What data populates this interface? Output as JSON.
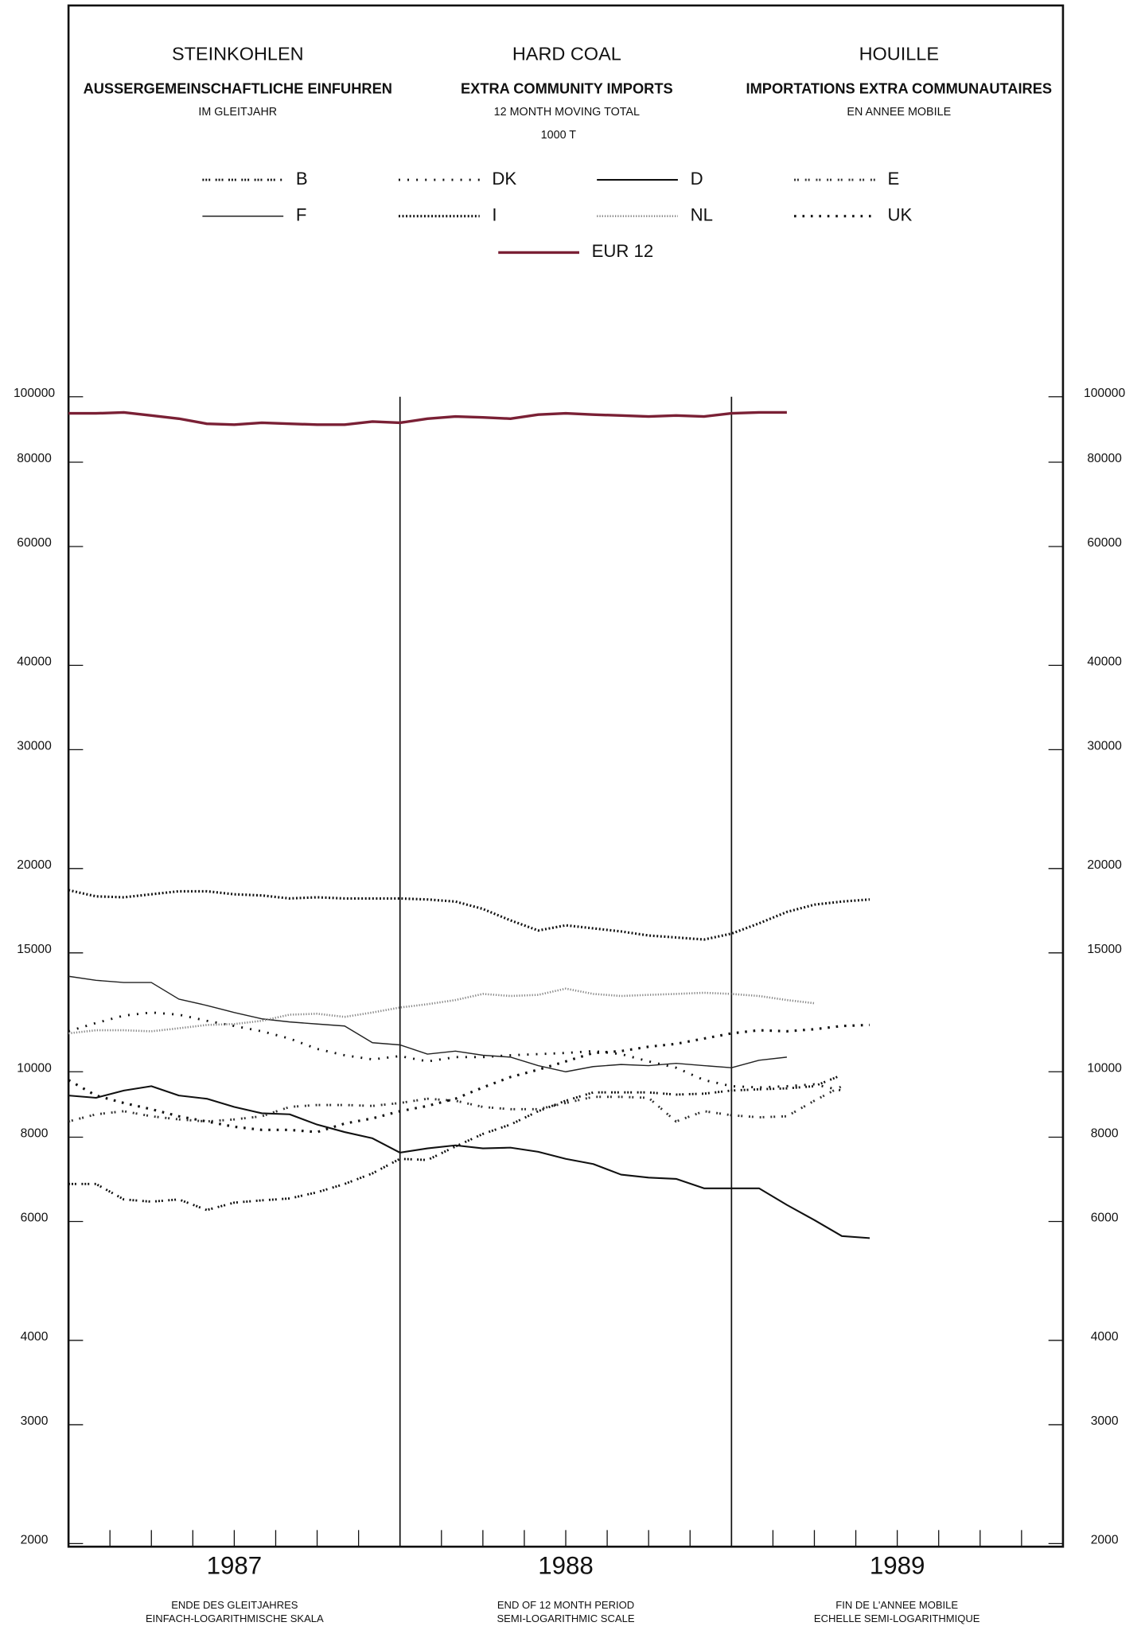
{
  "chart_data": {
    "type": "line",
    "title": [
      "STEINKOHLEN",
      "HARD COAL",
      "HOUILLE"
    ],
    "subtitle": [
      "AUSSERGEMEINSCHAFTLICHE EINFUHREN",
      "EXTRA COMMUNITY IMPORTS",
      "IMPORTATIONS EXTRA COMMUNAUTAIRES"
    ],
    "period": [
      "IM GLEITJAHR",
      "12 MONTH MOVING TOTAL",
      "EN ANNEE MOBILE"
    ],
    "unit": "1000 T",
    "notes": [
      [
        "ENDE DES GLEITJAHRES",
        "EINFACH-LOGARITHMISCHE SKALA"
      ],
      [
        "END OF 12 MONTH PERIOD",
        "SEMI-LOGARITHMIC SCALE"
      ],
      [
        "FIN DE L'ANNEE MOBILE",
        "ECHELLE SEMI-LOGARITHMIQUE"
      ]
    ],
    "log_y": true,
    "xlim": [
      1987,
      1990
    ],
    "xticks": [
      {
        "value": 1987.5,
        "label": "1987"
      },
      {
        "value": 1988.5,
        "label": "1988"
      },
      {
        "value": 1989.5,
        "label": "1989"
      }
    ],
    "year_lines": [
      1988,
      1989
    ],
    "ylim": [
      2000,
      100000
    ],
    "yticks": [
      2000,
      3000,
      4000,
      6000,
      8000,
      10000,
      15000,
      20000,
      30000,
      40000,
      60000,
      80000,
      100000
    ],
    "x": [
      1987,
      1987.083,
      1987.167,
      1987.25,
      1987.333,
      1987.417,
      1987.5,
      1987.583,
      1987.667,
      1987.75,
      1987.833,
      1987.917,
      1988,
      1988.083,
      1988.167,
      1988.25,
      1988.333,
      1988.417,
      1988.5,
      1988.583,
      1988.667,
      1988.75,
      1988.833,
      1988.917,
      1989,
      1989.083,
      1989.167,
      1989.25,
      1989.333,
      1989.417
    ],
    "series": [
      {
        "name": "B",
        "color": "#111111",
        "style": "cross-groups",
        "values": [
          6820,
          6820,
          6470,
          6420,
          6470,
          6240,
          6400,
          6450,
          6490,
          6630,
          6820,
          7070,
          7430,
          7400,
          7750,
          8090,
          8350,
          8740,
          9060,
          9320,
          9320,
          9320,
          9250,
          9280,
          9380,
          9420,
          9450,
          9520,
          9890,
          null
        ]
      },
      {
        "name": "DK",
        "color": "#111111",
        "style": "sparse-dots",
        "values": [
          11480,
          11810,
          12110,
          12240,
          12150,
          11900,
          11690,
          11480,
          11200,
          10810,
          10580,
          10430,
          10550,
          10360,
          10510,
          10510,
          10580,
          10620,
          10660,
          10730,
          10620,
          10360,
          10140,
          9720,
          9520,
          9480,
          9520,
          9580,
          9380,
          null
        ]
      },
      {
        "name": "D",
        "color": "#111111",
        "style": "solid",
        "values": [
          9220,
          9150,
          9380,
          9520,
          9220,
          9120,
          8870,
          8680,
          8650,
          8350,
          8140,
          7970,
          7590,
          7700,
          7780,
          7700,
          7720,
          7610,
          7430,
          7300,
          7040,
          6970,
          6940,
          6720,
          6720,
          6720,
          6350,
          6030,
          5710,
          5670
        ]
      },
      {
        "name": "E",
        "color": "#333333",
        "style": "cross-pairs",
        "values": [
          8440,
          8650,
          8740,
          8590,
          8500,
          8440,
          8500,
          8590,
          8870,
          8930,
          8930,
          8900,
          8990,
          9120,
          9060,
          8870,
          8800,
          8800,
          8990,
          9180,
          9180,
          9150,
          8440,
          8740,
          8620,
          8560,
          8590,
          9060,
          9520,
          null
        ]
      },
      {
        "name": "F",
        "color": "#222222",
        "style": "solid-thin",
        "values": [
          13850,
          13660,
          13560,
          13560,
          12810,
          12540,
          12240,
          11980,
          11850,
          11770,
          11690,
          11040,
          10960,
          10620,
          10730,
          10580,
          10510,
          10210,
          10000,
          10180,
          10250,
          10210,
          10290,
          10210,
          10140,
          10400,
          10510,
          null,
          null,
          null
        ]
      },
      {
        "name": "I",
        "color": "#111111",
        "style": "dense-crosses",
        "values": [
          18580,
          18190,
          18130,
          18320,
          18510,
          18510,
          18320,
          18250,
          18060,
          18130,
          18060,
          18060,
          18060,
          18000,
          17870,
          17430,
          16760,
          16190,
          16480,
          16310,
          16140,
          15920,
          15810,
          15700,
          16020,
          16590,
          17250,
          17680,
          17870,
          18000
        ]
      },
      {
        "name": "NL",
        "color": "#888888",
        "style": "fine-dots",
        "values": [
          11400,
          11520,
          11520,
          11480,
          11600,
          11730,
          11770,
          11900,
          12150,
          12190,
          12060,
          12240,
          12450,
          12590,
          12770,
          13040,
          12950,
          13000,
          13280,
          13040,
          12950,
          13000,
          13040,
          13090,
          13040,
          12950,
          12770,
          12630,
          null,
          null
        ]
      },
      {
        "name": "UK",
        "color": "#111111",
        "style": "spaced-crosses",
        "values": [
          9720,
          9220,
          8990,
          8800,
          8590,
          8440,
          8290,
          8200,
          8200,
          8140,
          8380,
          8530,
          8740,
          8900,
          9120,
          9480,
          9820,
          10070,
          10360,
          10660,
          10730,
          10890,
          11000,
          11200,
          11400,
          11520,
          11480,
          11560,
          11690,
          11730
        ]
      },
      {
        "name": "EUR 12",
        "color": "#7a2035",
        "style": "thick",
        "values": [
          94500,
          94500,
          94800,
          93800,
          92800,
          91200,
          90900,
          91500,
          91200,
          90900,
          90900,
          91900,
          91500,
          92800,
          93500,
          93200,
          92800,
          94100,
          94500,
          94100,
          93800,
          93500,
          93800,
          93500,
          94500,
          94800,
          94800,
          null,
          null,
          null
        ]
      }
    ]
  }
}
